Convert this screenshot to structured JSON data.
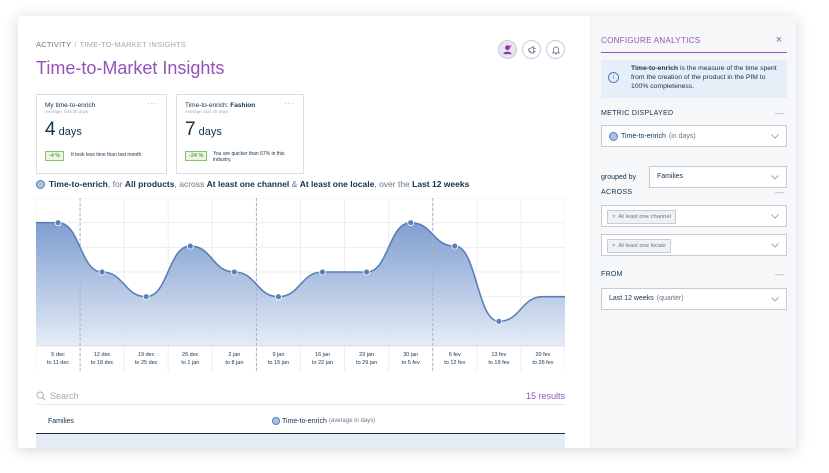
{
  "breadcrumb": {
    "root": "ACTIVITY",
    "separator": "/",
    "leaf": "TIME-TO-MARKET INSIGHTS"
  },
  "page_title": "Time-to-Market Insights",
  "kpis": [
    {
      "label": "My time-to-enrich",
      "label_bold": "",
      "sub": "Average, last 30 days",
      "value": "4",
      "unit": "days",
      "badge": "-4 %",
      "note": "It took less time than last month."
    },
    {
      "label": "Time-to-enrich: ",
      "label_bold": "Fashion",
      "sub": "Average, last 30 days",
      "value": "7",
      "unit": "days",
      "badge": "-24 %",
      "note": "You are quicker than 67% in this industry."
    }
  ],
  "kpi_menu": "···",
  "chart_title": {
    "metric": "Time-to-enrich",
    "p1": ", for ",
    "products": "All products",
    "p2": ", across ",
    "channel": "At least one channel",
    "p3": " & ",
    "locale": "At least one locale",
    "p4": ", over the ",
    "period": "Last 12 weeks"
  },
  "chart_data": {
    "type": "area",
    "x": [
      "5 dec to 11 dec",
      "12 dec to 18 dec",
      "19 dec to 25 dec",
      "26 dec to 1 jan",
      "2 jan to 8 jan",
      "9 jan to 15 jan",
      "16 jan to 22 jan",
      "23 jan to 29 jan",
      "30 jan to 5 fev",
      "6 fev to 12 fev",
      "13 fev to 19 fev",
      "20 fev to 26 fev"
    ],
    "x_top": [
      "5 dec",
      "12 dec",
      "19 dec",
      "26 dec",
      "2 jan",
      "9 jan",
      "16 jan",
      "23 jan",
      "30 jan",
      "6 fev",
      "13 fev",
      "20 fev"
    ],
    "x_bottom": [
      "to 11 dec",
      "to 18 dec",
      "to 25 dec",
      "to 1 jan",
      "to 8 jan",
      "to 15 jan",
      "to 22 jan",
      "to 29 jan",
      "to 5 fev",
      "to 12 fev",
      "to 19 fev",
      "to 26 fev"
    ],
    "values": [
      100,
      60,
      40,
      81,
      60,
      40,
      60,
      60,
      100,
      81,
      20,
      40
    ],
    "ylim": [
      0,
      120
    ],
    "grid": true,
    "dashed_x": [
      1,
      5,
      9
    ],
    "colors": {
      "line": "#5a7fb8",
      "area_top": "#7899ce",
      "area_bottom": "#e4ebf6",
      "point": "#5a7fb8"
    }
  },
  "search": {
    "placeholder": "Search",
    "results": "15 results"
  },
  "table": {
    "col1": "Families",
    "col2_metric": "Time-to-enrich",
    "col2_sub": " (average in days)"
  },
  "panel": {
    "title": "CONFIGURE ANALYTICS",
    "close": "×",
    "info_bold": "Time-to-enrich",
    "info_text": " is the measure of the time spent from the creation of the product in the PIM to 100% completeness.",
    "metric_section": "METRIC DISPLAYED",
    "metric_value": "Time-to-enrich",
    "metric_suffix": " (in days)",
    "grouped_label": "grouped by",
    "grouped_value": "Families",
    "across_section": "ACROSS",
    "across_channel": "At least one channel",
    "across_locale": "At least one locale",
    "from_section": "FROM",
    "from_value": "Last 12 weeks",
    "from_suffix": " (quarter)",
    "collapse": "—"
  },
  "icons": [
    "avatar-icon",
    "megaphone-icon",
    "bell-icon",
    "search-icon",
    "info-icon",
    "chevron-down-icon",
    "close-icon"
  ],
  "colors": {
    "accent": "#9452ba",
    "text": "#11324d",
    "muted": "#67768a",
    "blue": "#5a7fb8"
  }
}
